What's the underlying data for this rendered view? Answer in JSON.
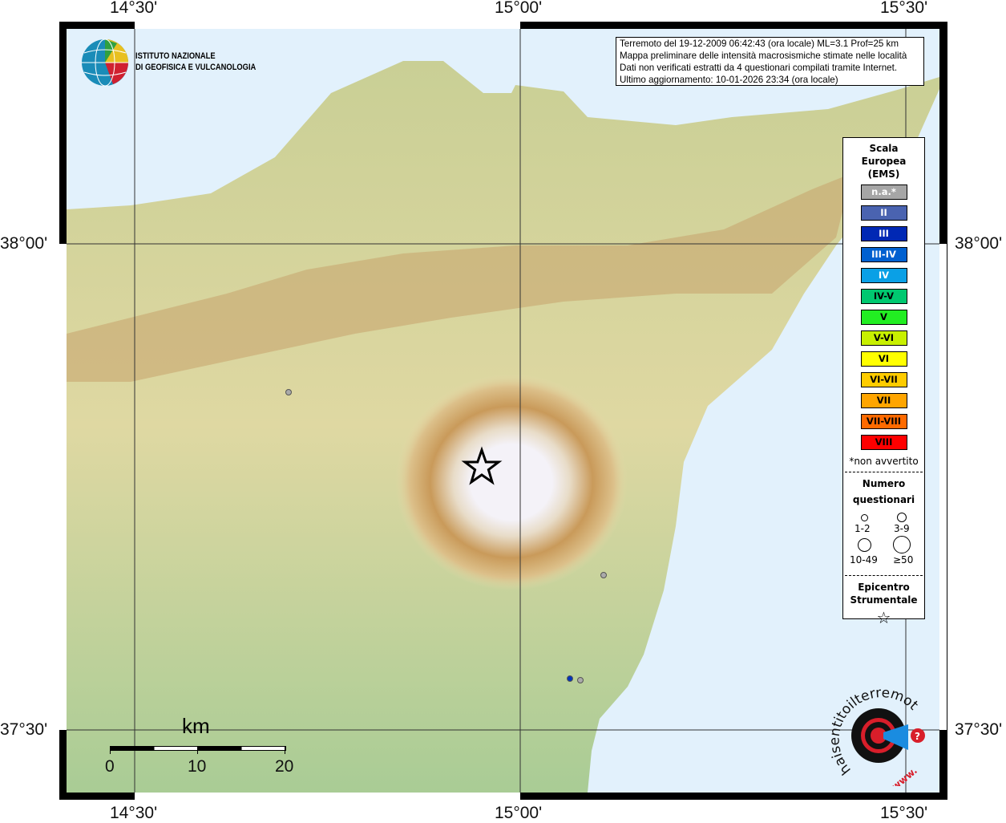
{
  "map": {
    "lon_ticks": [
      "14°30'",
      "15°00'",
      "15°30'"
    ],
    "lat_ticks": [
      "38°00'",
      "37°30'"
    ],
    "sea_color": "#e2f1fc",
    "stations": [
      {
        "color": "#aaaaaa",
        "intensity": "n.a."
      },
      {
        "color": "#aaaaaa",
        "intensity": "n.a."
      },
      {
        "color": "#aaaaaa",
        "intensity": "n.a."
      },
      {
        "color": "#0033bb",
        "intensity": "III"
      }
    ]
  },
  "info": {
    "lines": [
      "Terremoto del 19-12-2009 06:42:43 (ora locale) ML=3.1 Prof=25 km",
      "Mappa preliminare delle intensità macrosismiche stimate nelle località",
      "Dati non verificati estratti da 4 questionari compilati tramite Internet.",
      "Ultimo aggiornamento: 10-01-2026 23:34 (ora locale)"
    ]
  },
  "logo": {
    "line1": "ISTITUTO NAZIONALE",
    "line2": "DI GEOFISICA E VULCANOLOGIA"
  },
  "legend": {
    "title": [
      "Scala",
      "Europea",
      "(EMS)"
    ],
    "classes": [
      {
        "label": "n.a.*",
        "color": "#a6a6a6",
        "text": "#ffffff"
      },
      {
        "label": "II",
        "color": "#4a63b0",
        "text": "#ffffff"
      },
      {
        "label": "III",
        "color": "#0028b4",
        "text": "#ffffff"
      },
      {
        "label": "III-IV",
        "color": "#0060d0",
        "text": "#ffffff"
      },
      {
        "label": "IV",
        "color": "#0aa0e6",
        "text": "#ffffff"
      },
      {
        "label": "IV-V",
        "color": "#00c870",
        "text": "#000000"
      },
      {
        "label": "V",
        "color": "#22ee22",
        "text": "#000000"
      },
      {
        "label": "V-VI",
        "color": "#c8f000",
        "text": "#000000"
      },
      {
        "label": "VI",
        "color": "#ffff00",
        "text": "#000000"
      },
      {
        "label": "VI-VII",
        "color": "#ffcc00",
        "text": "#000000"
      },
      {
        "label": "VII",
        "color": "#ffa500",
        "text": "#000000"
      },
      {
        "label": "VII-VIII",
        "color": "#ff6a00",
        "text": "#000000"
      },
      {
        "label": "VIII",
        "color": "#ff0000",
        "text": "#000000"
      }
    ],
    "note": "*non avvertito",
    "count_title": [
      "Numero",
      "questionari"
    ],
    "counts": [
      "1-2",
      "3-9",
      "10-49",
      "≥50"
    ],
    "epi_title": [
      "Epicentro",
      "Strumentale"
    ]
  },
  "scale": {
    "unit": "km",
    "labels": [
      "0",
      "10",
      "20"
    ]
  },
  "haisentito": {
    "text": "haisentitoilterremoto.it",
    "prefix": "www."
  }
}
